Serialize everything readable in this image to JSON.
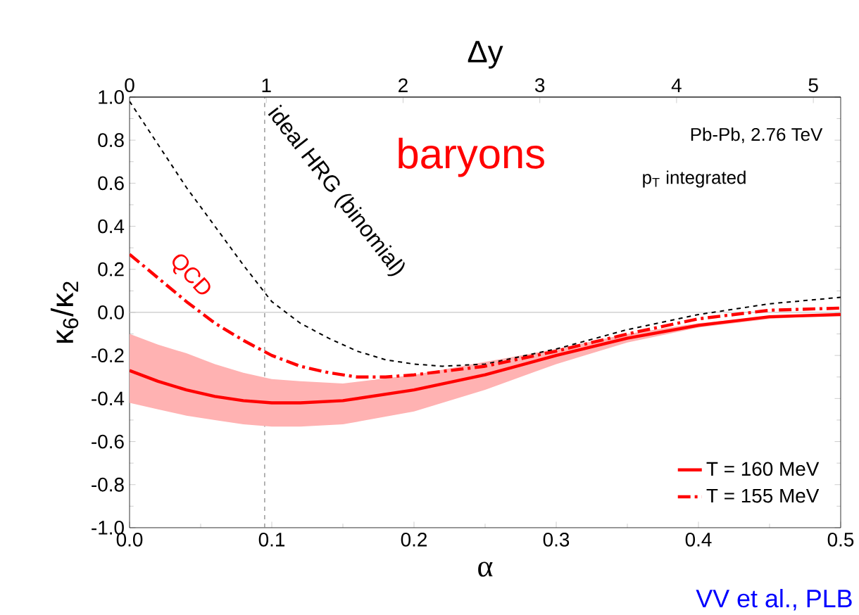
{
  "chart_data": {
    "type": "line",
    "xlabel": "α",
    "ylabel": "κ$_{6}$/κ$_{2}$",
    "x2label": "Δy",
    "xlim": [
      0,
      0.5
    ],
    "ylim": [
      -1,
      1
    ],
    "x2lim": [
      0,
      5.2
    ],
    "xticks": [
      {
        "value": 0,
        "label": "0.0"
      },
      {
        "value": 0.1,
        "label": "0.1"
      },
      {
        "value": 0.2,
        "label": "0.2"
      },
      {
        "value": 0.3,
        "label": "0.3"
      },
      {
        "value": 0.4,
        "label": "0.4"
      },
      {
        "value": 0.5,
        "label": "0.5"
      }
    ],
    "x2ticks": [
      0,
      1,
      2,
      3,
      4,
      5
    ],
    "yticks": [
      {
        "value": -1,
        "label": "-1.0"
      },
      {
        "value": -0.8,
        "label": "-0.8"
      },
      {
        "value": -0.6,
        "label": "-0.6"
      },
      {
        "value": -0.4,
        "label": "-0.4"
      },
      {
        "value": -0.2,
        "label": "-0.2"
      },
      {
        "value": 0,
        "label": "0.0"
      },
      {
        "value": 0.2,
        "label": "0.2"
      },
      {
        "value": 0.4,
        "label": "0.4"
      },
      {
        "value": 0.6,
        "label": "0.6"
      },
      {
        "value": 0.8,
        "label": "0.8"
      },
      {
        "value": 1,
        "label": "1.0"
      }
    ],
    "grid": false,
    "legend": "bottom right",
    "marker": "none",
    "series": [
      {
        "color": "#000000",
        "line_style": "dashed",
        "x": [
          0,
          0.02,
          0.04,
          0.06,
          0.08,
          0.1,
          0.12,
          0.14,
          0.16,
          0.18,
          0.2,
          0.22,
          0.25,
          0.3,
          0.35,
          0.4,
          0.45,
          0.5
        ],
        "values": [
          0.98,
          0.78,
          0.58,
          0.4,
          0.22,
          0.05,
          -0.05,
          -0.12,
          -0.18,
          -0.22,
          -0.24,
          -0.25,
          -0.24,
          -0.17,
          -0.08,
          -0.01,
          0.04,
          0.07
        ]
      },
      {
        "name": "T = 160 MeV",
        "color": "#ff0000",
        "line_style": "solid",
        "x": [
          0,
          0.02,
          0.04,
          0.06,
          0.08,
          0.1,
          0.12,
          0.15,
          0.2,
          0.25,
          0.3,
          0.35,
          0.4,
          0.45,
          0.5
        ],
        "values": [
          -0.27,
          -0.32,
          -0.36,
          -0.39,
          -0.41,
          -0.42,
          -0.42,
          -0.41,
          -0.36,
          -0.29,
          -0.2,
          -0.12,
          -0.06,
          -0.02,
          -0.01
        ],
        "lower": [
          -0.42,
          -0.45,
          -0.48,
          -0.5,
          -0.52,
          -0.53,
          -0.53,
          -0.52,
          -0.46,
          -0.36,
          -0.24,
          -0.14,
          -0.07,
          -0.03,
          -0.01
        ],
        "upper": [
          -0.1,
          -0.15,
          -0.19,
          -0.24,
          -0.28,
          -0.31,
          -0.32,
          -0.33,
          -0.29,
          -0.23,
          -0.17,
          -0.1,
          -0.05,
          -0.02,
          -0.01
        ]
      },
      {
        "name": "T = 155 MeV",
        "color": "#ff0000",
        "line_style": "dashdot",
        "x": [
          0,
          0.02,
          0.04,
          0.06,
          0.08,
          0.1,
          0.12,
          0.14,
          0.16,
          0.18,
          0.2,
          0.25,
          0.3,
          0.35,
          0.4,
          0.45,
          0.5
        ],
        "values": [
          0.27,
          0.16,
          0.05,
          -0.05,
          -0.13,
          -0.2,
          -0.25,
          -0.28,
          -0.3,
          -0.3,
          -0.29,
          -0.25,
          -0.18,
          -0.1,
          -0.03,
          0.01,
          0.02
        ]
      }
    ],
    "ref_lines": [
      {
        "axis": "x",
        "value": 0.095,
        "color": "#808080",
        "line_style": "dashed"
      },
      {
        "axis": "y",
        "value": 0,
        "color": "#c8c8c8",
        "line_style": "solid"
      }
    ],
    "annotations": [
      "ideal HRG (binomial)",
      "QCD",
      "baryons",
      "Pb-Pb, 2.76 TeV",
      "p$_{T}$ integrated",
      "VV et al., PLB"
    ]
  }
}
